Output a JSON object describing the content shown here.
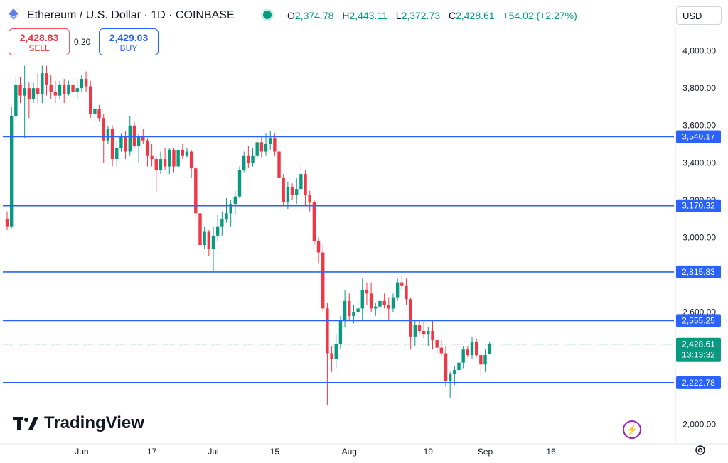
{
  "header": {
    "title": "Ethereum / U.S. Dollar · 1D · COINBASE",
    "ohlc": [
      {
        "k": "O",
        "v": "2,374.78"
      },
      {
        "k": "H",
        "v": "2,443.11"
      },
      {
        "k": "L",
        "v": "2,372.73"
      },
      {
        "k": "C",
        "v": "2,428.61"
      }
    ],
    "change": "+54.02 (+2.27%)",
    "currency": "USD"
  },
  "trade": {
    "sell_price": "2,428.83",
    "sell_label": "SELL",
    "spread": "0.20",
    "buy_price": "2,429.03",
    "buy_label": "BUY"
  },
  "logo": {
    "text": "TradingView"
  },
  "colors": {
    "up": "#089981",
    "down": "#f23645",
    "level": "#2962ff",
    "last": "#089981"
  },
  "chart_data": {
    "type": "candlestick",
    "yticks": [
      "4,000.00",
      "3,800.00",
      "3,600.00",
      "3,400.00",
      "3,200.00",
      "3,000.00",
      "2,600.00",
      "2,000.00"
    ],
    "ytick_values": [
      4000,
      3800,
      3600,
      3400,
      3200,
      3000,
      2600,
      2000
    ],
    "xticks": [
      {
        "label": "Jun",
        "i": 17
      },
      {
        "label": "17",
        "i": 33
      },
      {
        "label": "Jul",
        "i": 47
      },
      {
        "label": "15",
        "i": 61
      },
      {
        "label": "Aug",
        "i": 78
      },
      {
        "label": "19",
        "i": 96
      },
      {
        "label": "Sep",
        "i": 109
      },
      {
        "label": "16",
        "i": 124
      }
    ],
    "ylim": [
      1895,
      4120
    ],
    "levels": [
      {
        "value": 3540.17,
        "label": "3,540.17"
      },
      {
        "value": 3170.32,
        "label": "3,170.32"
      },
      {
        "value": 2815.83,
        "label": "2,815.83"
      },
      {
        "value": 2555.25,
        "label": "2,555.25"
      },
      {
        "value": 2222.78,
        "label": "2,222.78"
      }
    ],
    "last": {
      "value": 2428.61,
      "label": "2,428.61",
      "countdown": "13:13:32"
    },
    "candles": [
      [
        3100,
        3140,
        3040,
        3060
      ],
      [
        3060,
        3700,
        3050,
        3650
      ],
      [
        3650,
        3860,
        3630,
        3820
      ],
      [
        3820,
        3860,
        3720,
        3760
      ],
      [
        3760,
        3920,
        3530,
        3800
      ],
      [
        3800,
        3830,
        3640,
        3740
      ],
      [
        3740,
        3830,
        3720,
        3800
      ],
      [
        3800,
        3880,
        3720,
        3770
      ],
      [
        3770,
        3920,
        3720,
        3880
      ],
      [
        3880,
        3920,
        3760,
        3820
      ],
      [
        3820,
        3870,
        3740,
        3780
      ],
      [
        3780,
        3840,
        3720,
        3760
      ],
      [
        3760,
        3840,
        3740,
        3820
      ],
      [
        3820,
        3850,
        3720,
        3770
      ],
      [
        3770,
        3840,
        3760,
        3820
      ],
      [
        3820,
        3870,
        3740,
        3780
      ],
      [
        3780,
        3850,
        3740,
        3800
      ],
      [
        3800,
        3870,
        3780,
        3850
      ],
      [
        3850,
        3890,
        3780,
        3810
      ],
      [
        3810,
        3840,
        3640,
        3660
      ],
      [
        3660,
        3720,
        3620,
        3690
      ],
      [
        3690,
        3710,
        3620,
        3640
      ],
      [
        3640,
        3660,
        3400,
        3520
      ],
      [
        3520,
        3600,
        3500,
        3580
      ],
      [
        3580,
        3600,
        3380,
        3420
      ],
      [
        3420,
        3520,
        3380,
        3480
      ],
      [
        3480,
        3560,
        3460,
        3540
      ],
      [
        3540,
        3570,
        3420,
        3460
      ],
      [
        3460,
        3650,
        3440,
        3600
      ],
      [
        3600,
        3620,
        3480,
        3490
      ],
      [
        3490,
        3560,
        3400,
        3540
      ],
      [
        3540,
        3580,
        3500,
        3520
      ],
      [
        3520,
        3530,
        3380,
        3440
      ],
      [
        3440,
        3500,
        3380,
        3420
      ],
      [
        3420,
        3440,
        3240,
        3360
      ],
      [
        3360,
        3460,
        3340,
        3420
      ],
      [
        3420,
        3480,
        3360,
        3380
      ],
      [
        3380,
        3480,
        3340,
        3470
      ],
      [
        3470,
        3480,
        3350,
        3380
      ],
      [
        3380,
        3500,
        3370,
        3470
      ],
      [
        3470,
        3500,
        3420,
        3440
      ],
      [
        3440,
        3480,
        3430,
        3460
      ],
      [
        3460,
        3470,
        3320,
        3370
      ],
      [
        3370,
        3380,
        3100,
        3130
      ],
      [
        3130,
        3140,
        2820,
        2960
      ],
      [
        2960,
        3060,
        2940,
        3030
      ],
      [
        3030,
        3040,
        2900,
        2940
      ],
      [
        2940,
        3060,
        2820,
        3010
      ],
      [
        3010,
        3120,
        2980,
        3060
      ],
      [
        3060,
        3140,
        3010,
        3100
      ],
      [
        3100,
        3210,
        3080,
        3130
      ],
      [
        3130,
        3200,
        3060,
        3180
      ],
      [
        3180,
        3250,
        3120,
        3220
      ],
      [
        3220,
        3380,
        3210,
        3360
      ],
      [
        3360,
        3460,
        3350,
        3440
      ],
      [
        3440,
        3490,
        3370,
        3400
      ],
      [
        3400,
        3480,
        3380,
        3440
      ],
      [
        3440,
        3540,
        3420,
        3510
      ],
      [
        3510,
        3540,
        3430,
        3460
      ],
      [
        3460,
        3560,
        3440,
        3500
      ],
      [
        3500,
        3570,
        3470,
        3530
      ],
      [
        3530,
        3560,
        3440,
        3460
      ],
      [
        3460,
        3470,
        3300,
        3320
      ],
      [
        3320,
        3340,
        3170,
        3190
      ],
      [
        3190,
        3300,
        3150,
        3270
      ],
      [
        3270,
        3290,
        3200,
        3230
      ],
      [
        3230,
        3320,
        3180,
        3260
      ],
      [
        3260,
        3390,
        3230,
        3340
      ],
      [
        3340,
        3360,
        3170,
        3230
      ],
      [
        3230,
        3250,
        3140,
        3190
      ],
      [
        3190,
        3200,
        2960,
        2980
      ],
      [
        2980,
        3000,
        2860,
        2920
      ],
      [
        2920,
        2960,
        2600,
        2620
      ],
      [
        2620,
        2650,
        2100,
        2380
      ],
      [
        2380,
        2420,
        2280,
        2350
      ],
      [
        2350,
        2480,
        2300,
        2430
      ],
      [
        2430,
        2580,
        2400,
        2560
      ],
      [
        2560,
        2720,
        2520,
        2660
      ],
      [
        2660,
        2700,
        2560,
        2580
      ],
      [
        2580,
        2640,
        2540,
        2600
      ],
      [
        2600,
        2660,
        2520,
        2620
      ],
      [
        2620,
        2780,
        2560,
        2720
      ],
      [
        2720,
        2760,
        2640,
        2700
      ],
      [
        2700,
        2760,
        2600,
        2620
      ],
      [
        2620,
        2650,
        2580,
        2630
      ],
      [
        2630,
        2680,
        2580,
        2660
      ],
      [
        2660,
        2700,
        2620,
        2640
      ],
      [
        2640,
        2680,
        2560,
        2620
      ],
      [
        2620,
        2700,
        2600,
        2680
      ],
      [
        2680,
        2780,
        2660,
        2760
      ],
      [
        2760,
        2800,
        2720,
        2740
      ],
      [
        2740,
        2780,
        2640,
        2670
      ],
      [
        2670,
        2680,
        2400,
        2470
      ],
      [
        2470,
        2560,
        2420,
        2530
      ],
      [
        2530,
        2560,
        2480,
        2500
      ],
      [
        2500,
        2560,
        2460,
        2480
      ],
      [
        2480,
        2520,
        2420,
        2500
      ],
      [
        2500,
        2560,
        2400,
        2450
      ],
      [
        2450,
        2470,
        2380,
        2410
      ],
      [
        2410,
        2450,
        2360,
        2380
      ],
      [
        2380,
        2420,
        2200,
        2230
      ],
      [
        2230,
        2280,
        2140,
        2270
      ],
      [
        2270,
        2310,
        2210,
        2290
      ],
      [
        2290,
        2360,
        2240,
        2330
      ],
      [
        2330,
        2420,
        2300,
        2400
      ],
      [
        2400,
        2420,
        2360,
        2370
      ],
      [
        2370,
        2470,
        2350,
        2440
      ],
      [
        2440,
        2460,
        2360,
        2370
      ],
      [
        2370,
        2380,
        2260,
        2320
      ],
      [
        2320,
        2400,
        2280,
        2370
      ],
      [
        2374.78,
        2443.11,
        2372.73,
        2428.61
      ]
    ]
  }
}
